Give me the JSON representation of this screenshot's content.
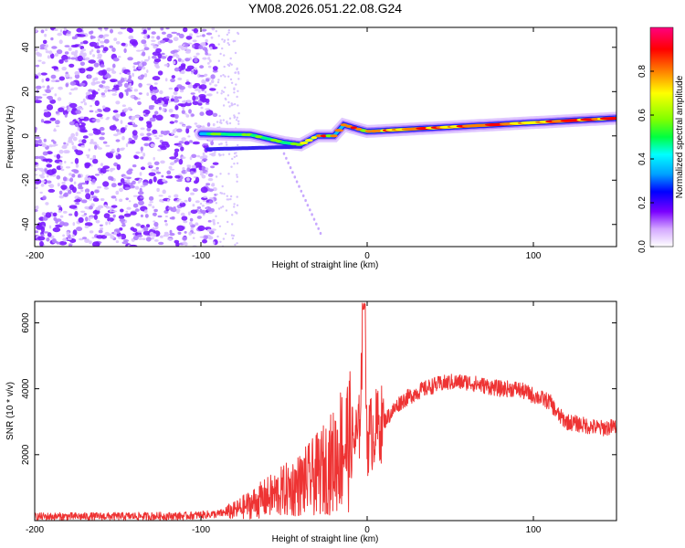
{
  "title": "YM08.2026.051.22.08.G24",
  "chart_data": [
    {
      "type": "heatmap",
      "name": "spectrogram",
      "xlabel": "Height of straight line (km)",
      "ylabel": "Frequency (Hz)",
      "xlim": [
        -200,
        150
      ],
      "ylim": [
        -50,
        49
      ],
      "xticks": [
        -200,
        -100,
        0,
        100
      ],
      "yticks": [
        -40,
        -20,
        0,
        20,
        40
      ],
      "noise_region": {
        "x_range": [
          -200,
          -77
        ],
        "freq_range": [
          -50,
          49
        ]
      },
      "signal_track": [
        {
          "x": -100,
          "freq": 1.0
        },
        {
          "x": -70,
          "freq": 0.5
        },
        {
          "x": -50,
          "freq": -3.0
        },
        {
          "x": -40,
          "freq": -4.0
        },
        {
          "x": -30,
          "freq": 0.0
        },
        {
          "x": -20,
          "freq": 0.0
        },
        {
          "x": -14,
          "freq": 5.0
        },
        {
          "x": -5,
          "freq": 3.0
        },
        {
          "x": 0,
          "freq": 2.0
        },
        {
          "x": 25,
          "freq": 3.0
        },
        {
          "x": 50,
          "freq": 4.0
        },
        {
          "x": 75,
          "freq": 5.0
        },
        {
          "x": 100,
          "freq": 6.0
        },
        {
          "x": 125,
          "freq": 7.0
        },
        {
          "x": 150,
          "freq": 8.0
        }
      ],
      "colorbar": {
        "label": "Normalized spectral amplitude",
        "range": [
          0.0,
          1.0
        ],
        "ticks": [
          "0.0",
          "0.2",
          "0.4",
          "0.6",
          "0.8"
        ],
        "colors": [
          "#ffffff",
          "#d4a8ff",
          "#7a00ff",
          "#0000ff",
          "#00a0ff",
          "#00ffff",
          "#00ff40",
          "#80ff00",
          "#ffff00",
          "#ff8000",
          "#ff0000",
          "#ff0080"
        ]
      }
    },
    {
      "type": "line",
      "name": "snr",
      "xlabel": "Height of straight line (km)",
      "ylabel": "SNR (10 * v/v)",
      "xlim": [
        -200,
        150
      ],
      "ylim": [
        0,
        6650
      ],
      "xticks": [
        -200,
        -100,
        0,
        100
      ],
      "yticks": [
        2000,
        4000,
        6000
      ],
      "color": "#ee3333",
      "series": [
        {
          "name": "SNR",
          "x": [
            -200,
            -150,
            -110,
            -90,
            -80,
            -70,
            -60,
            -50,
            -40,
            -30,
            -20,
            -15,
            -10,
            -5,
            -2,
            0,
            5,
            10,
            20,
            30,
            40,
            50,
            60,
            70,
            80,
            90,
            100,
            110,
            115,
            120,
            130,
            140,
            150
          ],
          "y": [
            120,
            130,
            140,
            200,
            300,
            500,
            700,
            900,
            1100,
            1400,
            1800,
            2300,
            2400,
            2500,
            6400,
            2500,
            2800,
            3000,
            3600,
            3900,
            4100,
            4200,
            4200,
            4100,
            4000,
            4000,
            3800,
            3600,
            3200,
            3000,
            2900,
            2800,
            2850
          ]
        }
      ]
    }
  ]
}
